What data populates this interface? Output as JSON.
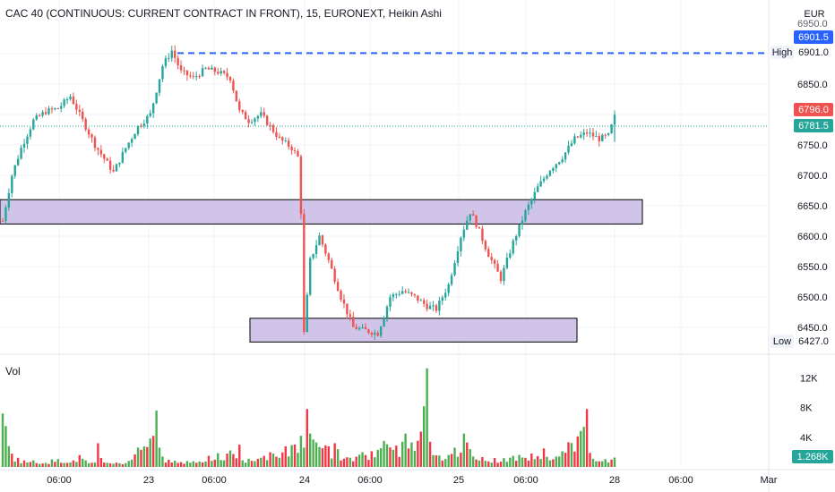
{
  "header": {
    "title": "CAC 40 (CONTINUOUS: CURRENT CONTRACT IN FRONT), 15, EURONEXT, Heikin Ashi",
    "currency": "EUR",
    "volume_label": "Vol"
  },
  "price_tags": {
    "high_label": "High",
    "high_value": "6901.0",
    "high_marker": "6901.5",
    "low_label": "Low",
    "low_value": "6427.0",
    "last_value": "6796.0",
    "prev_value": "6781.5",
    "volume_value": "1.268K",
    "top_partial": "6950.0"
  },
  "colors": {
    "up": "#26a69a",
    "down": "#ef5350",
    "vol_up": "#4caf50",
    "vol_down": "#f23645",
    "zone_fill": "#d1c4e9",
    "zone_stroke": "#000000",
    "high_line": "#2962ff"
  },
  "chart_data": {
    "type": "candlestick",
    "price_axis": {
      "ticks": [
        6450,
        6500,
        6550,
        6600,
        6650,
        6700,
        6750,
        6850
      ],
      "tick_labels": [
        "6450.0",
        "6500.0",
        "6550.0",
        "6600.0",
        "6650.0",
        "6700.0",
        "6750.0",
        "6850.0"
      ],
      "range": [
        6400,
        6960
      ]
    },
    "volume_axis": {
      "ticks": [
        4000,
        8000,
        12000
      ],
      "tick_labels": [
        "4K",
        "8K",
        "12K"
      ],
      "range": [
        0,
        13500
      ]
    },
    "time_axis": [
      "06:00",
      "23",
      "06:00",
      "24",
      "06:00",
      "25",
      "06:00",
      "28",
      "06:00",
      "Mar"
    ],
    "high_line": 6901.0,
    "zones": [
      {
        "from": 6620,
        "to": 6660
      },
      {
        "from": 6426,
        "to": 6465
      }
    ],
    "anchors": [
      [
        0,
        6625
      ],
      [
        3,
        6700
      ],
      [
        6,
        6745
      ],
      [
        10,
        6790
      ],
      [
        14,
        6805
      ],
      [
        18,
        6810
      ],
      [
        22,
        6830
      ],
      [
        26,
        6790
      ],
      [
        30,
        6750
      ],
      [
        34,
        6720
      ],
      [
        36,
        6705
      ],
      [
        40,
        6745
      ],
      [
        44,
        6780
      ],
      [
        48,
        6800
      ],
      [
        52,
        6880
      ],
      [
        55,
        6905
      ],
      [
        58,
        6870
      ],
      [
        62,
        6860
      ],
      [
        66,
        6875
      ],
      [
        70,
        6870
      ],
      [
        74,
        6860
      ],
      [
        77,
        6805
      ],
      [
        80,
        6790
      ],
      [
        84,
        6800
      ],
      [
        87,
        6780
      ],
      [
        90,
        6760
      ],
      [
        94,
        6745
      ],
      [
        96,
        6730
      ],
      [
        97,
        6640
      ],
      [
        98,
        6440
      ],
      [
        100,
        6560
      ],
      [
        103,
        6600
      ],
      [
        106,
        6560
      ],
      [
        110,
        6500
      ],
      [
        114,
        6450
      ],
      [
        118,
        6445
      ],
      [
        122,
        6440
      ],
      [
        126,
        6500
      ],
      [
        130,
        6510
      ],
      [
        134,
        6500
      ],
      [
        138,
        6485
      ],
      [
        141,
        6480
      ],
      [
        145,
        6520
      ],
      [
        149,
        6600
      ],
      [
        152,
        6640
      ],
      [
        154,
        6620
      ],
      [
        158,
        6570
      ],
      [
        162,
        6530
      ],
      [
        166,
        6590
      ],
      [
        170,
        6640
      ],
      [
        174,
        6680
      ],
      [
        178,
        6710
      ],
      [
        182,
        6730
      ],
      [
        186,
        6760
      ],
      [
        190,
        6770
      ],
      [
        194,
        6760
      ],
      [
        197,
        6765
      ],
      [
        199,
        6796
      ]
    ],
    "volume_anchors": [
      [
        0,
        7200
      ],
      [
        1,
        5500
      ],
      [
        2,
        2800
      ],
      [
        3,
        1800
      ],
      [
        10,
        900
      ],
      [
        25,
        1600
      ],
      [
        30,
        600
      ],
      [
        31,
        3200
      ],
      [
        32,
        1200
      ],
      [
        40,
        500
      ],
      [
        50,
        7600
      ],
      [
        51,
        2600
      ],
      [
        52,
        1400
      ],
      [
        60,
        800
      ],
      [
        77,
        3000
      ],
      [
        78,
        900
      ],
      [
        97,
        4200
      ],
      [
        98,
        2600
      ],
      [
        99,
        7800
      ],
      [
        100,
        4500
      ],
      [
        101,
        3700
      ],
      [
        102,
        3300
      ],
      [
        108,
        3200
      ],
      [
        112,
        1300
      ],
      [
        124,
        3500
      ],
      [
        130,
        3400
      ],
      [
        131,
        4500
      ],
      [
        132,
        2500
      ],
      [
        133,
        3300
      ],
      [
        138,
        13300
      ],
      [
        139,
        3400
      ],
      [
        140,
        1600
      ],
      [
        147,
        2600
      ],
      [
        150,
        4500
      ],
      [
        151,
        3300
      ],
      [
        152,
        2400
      ],
      [
        160,
        1200
      ],
      [
        176,
        2500
      ],
      [
        180,
        1400
      ],
      [
        190,
        7800
      ],
      [
        191,
        1900
      ],
      [
        192,
        1100
      ],
      [
        199,
        1268
      ]
    ]
  }
}
